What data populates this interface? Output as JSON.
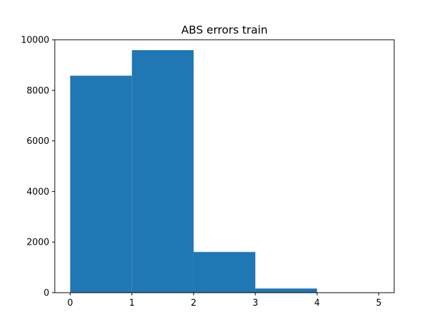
{
  "chart_data": {
    "type": "bar",
    "title": "ABS errors train",
    "xlabel": "",
    "ylabel": "",
    "bins": [
      {
        "x0": 0,
        "x1": 1,
        "value": 8580
      },
      {
        "x0": 1,
        "x1": 2,
        "value": 9590
      },
      {
        "x0": 2,
        "x1": 3,
        "value": 1610
      },
      {
        "x0": 3,
        "x1": 4,
        "value": 165
      },
      {
        "x0": 4,
        "x1": 5,
        "value": 8
      }
    ],
    "xlim": [
      -0.25,
      5.25
    ],
    "ylim": [
      0,
      10000
    ],
    "x_ticks": [
      0,
      1,
      2,
      3,
      4,
      5
    ],
    "x_tick_labels": [
      "0",
      "1",
      "2",
      "3",
      "4",
      "5"
    ],
    "y_ticks": [
      0,
      2000,
      4000,
      6000,
      8000,
      10000
    ],
    "y_tick_labels": [
      "0",
      "2000",
      "4000",
      "6000",
      "8000",
      "10000"
    ],
    "grid": false,
    "bar_color": "#1f77b4"
  }
}
